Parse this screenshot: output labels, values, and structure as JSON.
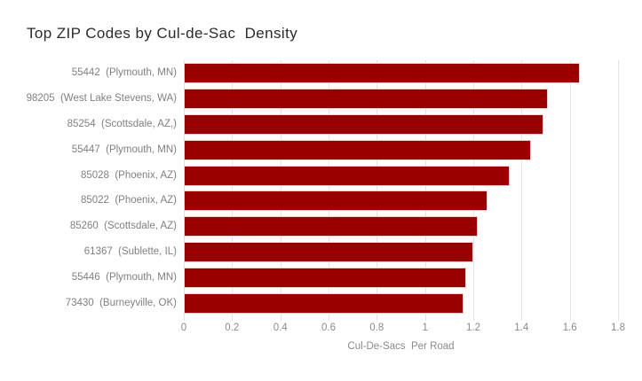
{
  "chart_data": {
    "type": "bar",
    "orientation": "horizontal",
    "title": "Top ZIP Codes by Cul-de-Sac  Density",
    "xlabel": "Cul-De-Sacs  Per Road",
    "ylabel": "",
    "categories": [
      "55442  (Plymouth, MN)",
      "98205  (West Lake Stevens, WA)",
      "85254  (Scottsdale, AZ,)",
      "55447  (Plymouth, MN)",
      "85028  (Phoenix, AZ)",
      "85022  (Phoenix, AZ)",
      "85260  (Scottsdale, AZ)",
      "61367  (Sublette, IL)",
      "55446  (Plymouth, MN)",
      "73430  (Burneyville, OK)"
    ],
    "values": [
      1.64,
      1.51,
      1.49,
      1.44,
      1.35,
      1.26,
      1.22,
      1.2,
      1.17,
      1.16
    ],
    "xlim": [
      0,
      1.8
    ],
    "xticks": [
      0,
      0.2,
      0.4,
      0.6,
      0.8,
      1,
      1.2,
      1.4,
      1.6,
      1.8
    ],
    "xtick_labels": [
      "0",
      "0.2",
      "0.4",
      "0.6",
      "0.8",
      "1",
      "1.2",
      "1.4",
      "1.6",
      "1.8"
    ],
    "grid": true,
    "legend": "none",
    "colors": {
      "bar_fill": "#9b0000",
      "bar_border": "#eecfcf",
      "gridline": "#e4e4e4",
      "label_text": "#808080",
      "title_text": "#2b2b2b",
      "background": "#ffffff"
    }
  }
}
